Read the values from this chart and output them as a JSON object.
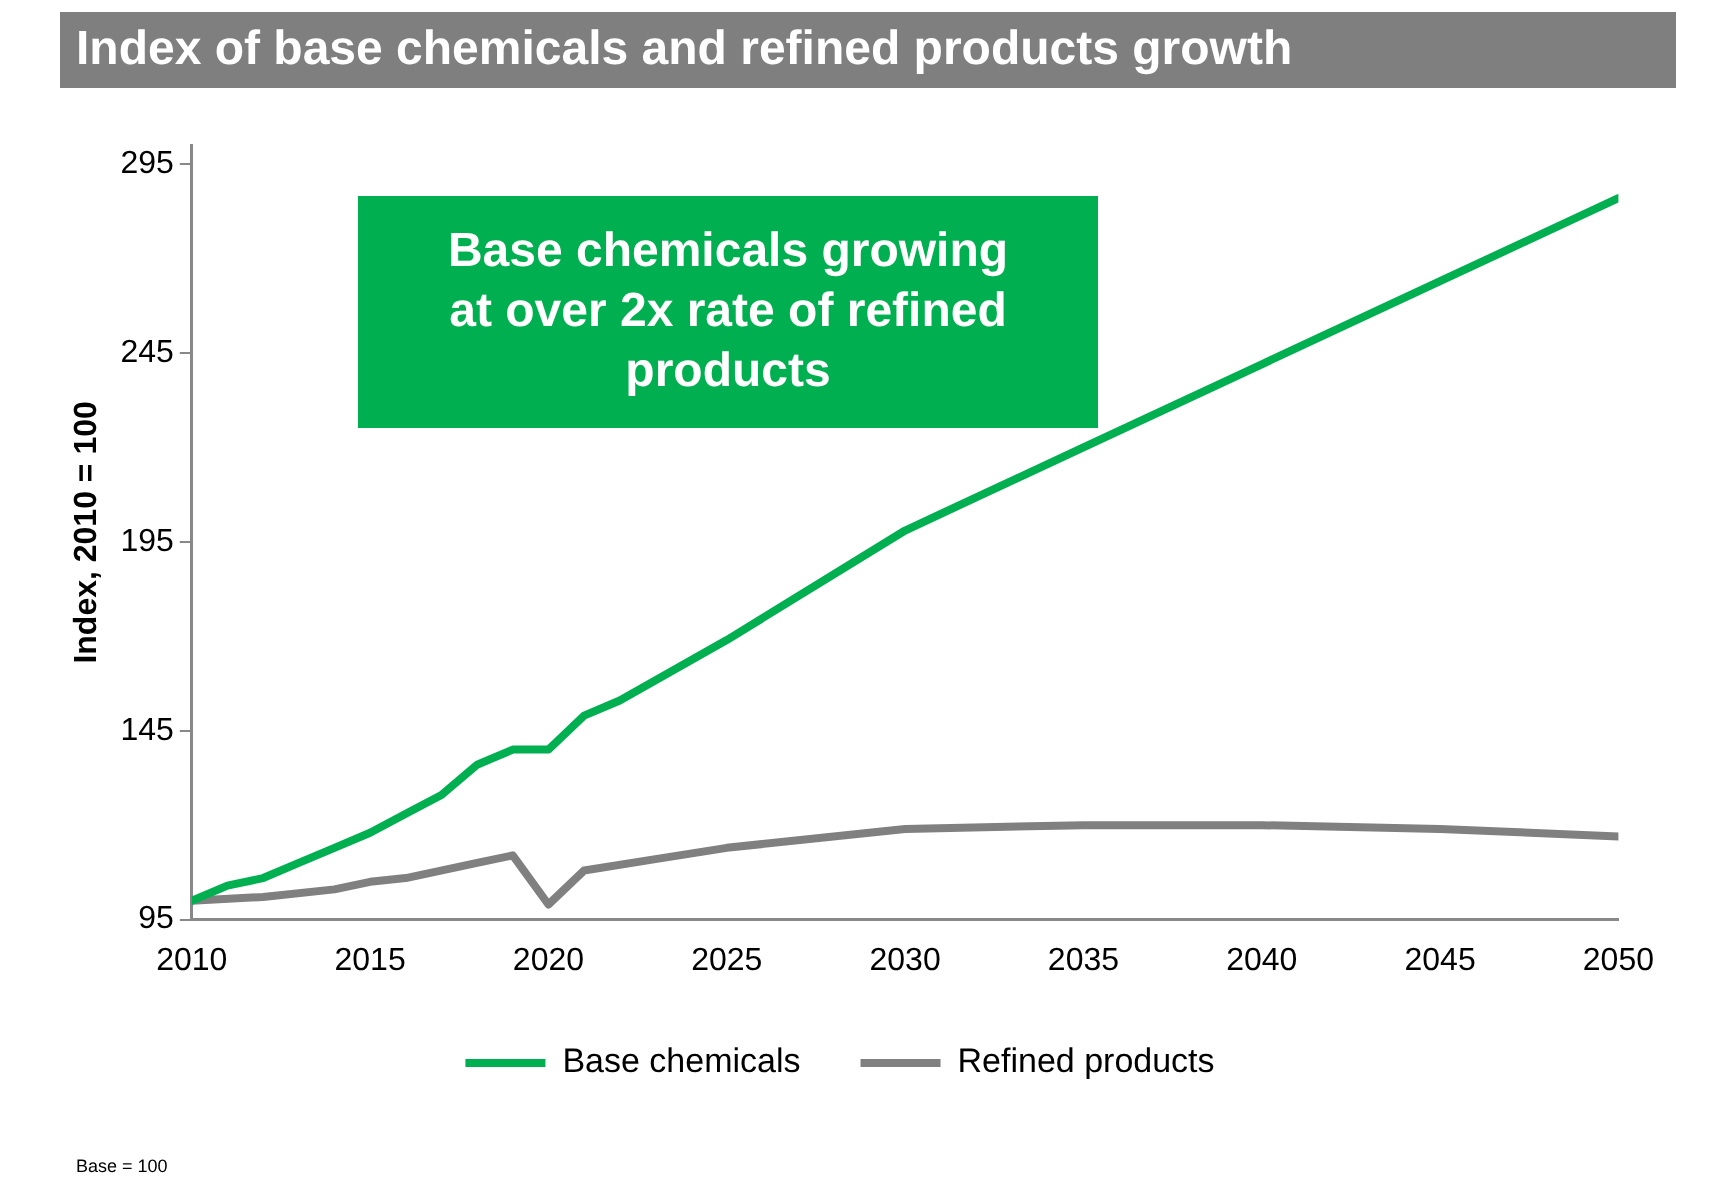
{
  "chart_data": {
    "type": "line",
    "title": "Index of base chemicals and refined products growth",
    "ylabel": "Index, 2010 = 100",
    "annotations": [
      "Base chemicals growing at over 2x rate of refined products",
      "Base = 100"
    ],
    "xlim": [
      2010,
      2050
    ],
    "xticks": [
      2010,
      2015,
      2020,
      2025,
      2030,
      2035,
      2040,
      2045,
      2050
    ],
    "ylim": [
      95,
      300
    ],
    "yticks": [
      95,
      145,
      195,
      245,
      295
    ],
    "grid": false,
    "legend": "bottom",
    "marker": "none",
    "line_style": "solid",
    "series": [
      {
        "name": "Base chemicals",
        "color": "#00b050",
        "x": [
          2010,
          2011,
          2012,
          2013,
          2014,
          2015,
          2016,
          2017,
          2018,
          2019,
          2020,
          2021,
          2022,
          2025,
          2030,
          2035,
          2040,
          2045,
          2050
        ],
        "values": [
          100,
          104,
          106,
          110,
          114,
          118,
          123,
          128,
          136,
          140,
          140,
          149,
          153,
          169,
          198,
          220,
          242,
          264,
          286
        ]
      },
      {
        "name": "Refined products",
        "color": "#808080",
        "x": [
          2010,
          2012,
          2014,
          2015,
          2016,
          2018,
          2019,
          2020,
          2021,
          2023,
          2025,
          2030,
          2035,
          2040,
          2045,
          2050
        ],
        "values": [
          100,
          101,
          103,
          105,
          106,
          110,
          112,
          99,
          108,
          111,
          114,
          119,
          120,
          120,
          119,
          117
        ]
      }
    ]
  }
}
